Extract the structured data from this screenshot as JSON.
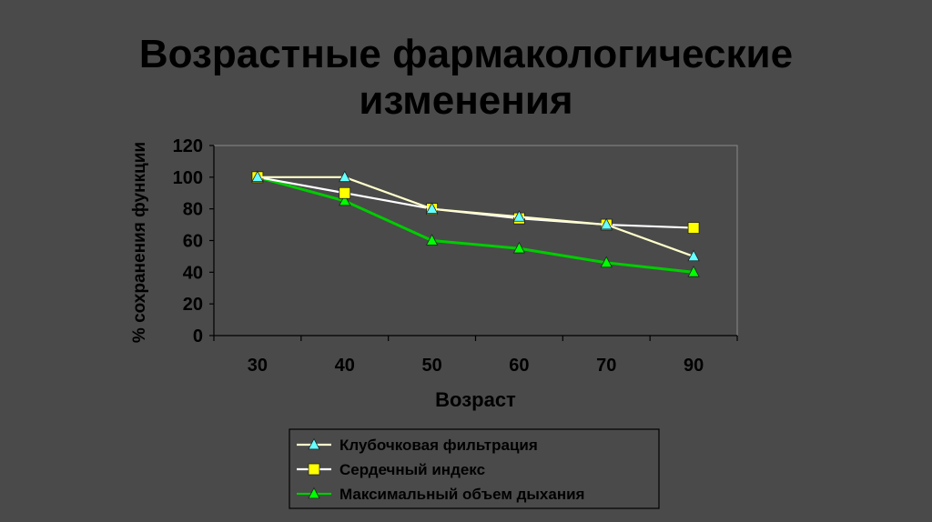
{
  "slide": {
    "title_line1": "Возрастные фармакологические",
    "title_line2": "изменения"
  },
  "colors": {
    "background": "#4a4a4a",
    "plot_area": "#4a4a4a",
    "text": "#000000",
    "gridline": "#ffffff"
  },
  "chart_data": {
    "type": "line",
    "title": "",
    "xlabel": "Возраст",
    "ylabel": "% сохранения функции",
    "categories": [
      "30",
      "40",
      "50",
      "60",
      "70",
      "90"
    ],
    "ylim": [
      0,
      120
    ],
    "yticks": [
      0,
      20,
      40,
      60,
      80,
      100,
      120
    ],
    "grid": true,
    "legend_position": "bottom",
    "series": [
      {
        "name": "Клубочковая фильтрация",
        "values": [
          100,
          100,
          80,
          75,
          70,
          50
        ],
        "line_color": "#ffffcc",
        "marker": "triangle",
        "marker_color": "#66ffff"
      },
      {
        "name": "Сердечный индекс",
        "values": [
          100,
          90,
          80,
          74,
          70,
          68
        ],
        "line_color": "#ffffff",
        "marker": "square",
        "marker_color": "#ffff00"
      },
      {
        "name": "Максимальный объем дыхания",
        "values": [
          100,
          85,
          60,
          55,
          46,
          40
        ],
        "line_color": "#00cc00",
        "marker": "triangle",
        "marker_color": "#00ff00"
      }
    ]
  }
}
